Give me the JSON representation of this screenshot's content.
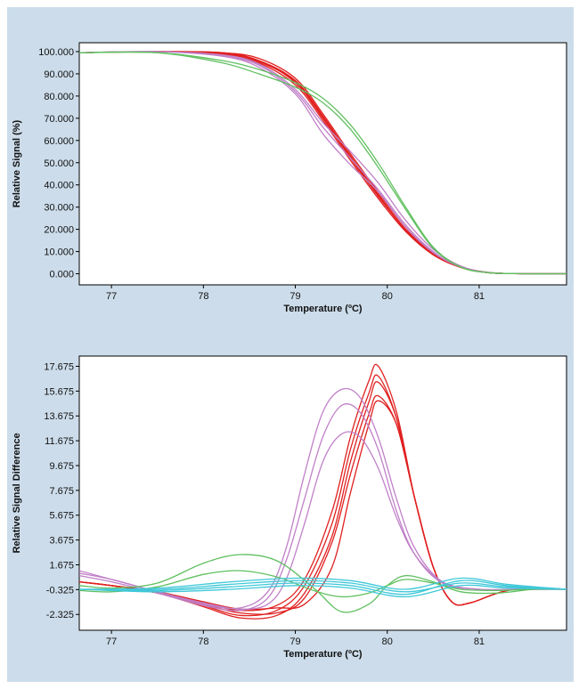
{
  "chart_data": [
    {
      "type": "line",
      "xlabel": "Temperature (ºC)",
      "ylabel": "Relative Signal (%)",
      "xlim": [
        76.65,
        81.95
      ],
      "ylim": [
        -5.0,
        104.0
      ],
      "x_ticks": [
        "77",
        "78",
        "79",
        "80",
        "81"
      ],
      "x_tick_values": [
        77,
        78,
        79,
        80,
        81
      ],
      "y_ticks": [
        "100.000",
        "90.000",
        "80.000",
        "70.000",
        "60.000",
        "50.000",
        "40.000",
        "30.000",
        "20.000",
        "10.000",
        "0.000"
      ],
      "y_tick_values": [
        100,
        90,
        80,
        70,
        60,
        50,
        40,
        30,
        20,
        10,
        0
      ],
      "grid": false,
      "colors": {
        "red": "#e02020",
        "violet": "#c080c8",
        "green": "#60c060"
      },
      "series": [
        {
          "color": "red",
          "x": [
            76.65,
            77.5,
            78.2,
            78.6,
            79.0,
            79.3,
            79.6,
            79.9,
            80.2,
            80.5,
            80.8,
            81.1,
            81.5,
            81.95
          ],
          "values": [
            99.5,
            100,
            99.5,
            96,
            86,
            70,
            52,
            35,
            20,
            9,
            3,
            0.5,
            0,
            0
          ]
        },
        {
          "color": "red",
          "x": [
            76.65,
            77.5,
            78.2,
            78.6,
            79.0,
            79.3,
            79.6,
            79.9,
            80.2,
            80.5,
            80.8,
            81.1,
            81.5,
            81.95
          ],
          "values": [
            99.5,
            100,
            99,
            95,
            85,
            69,
            51,
            34,
            19,
            8.5,
            2.8,
            0.5,
            0,
            0
          ]
        },
        {
          "color": "red",
          "x": [
            76.65,
            77.5,
            78.2,
            78.6,
            79.0,
            79.3,
            79.6,
            79.9,
            80.2,
            80.5,
            80.8,
            81.1,
            81.5,
            81.95
          ],
          "values": [
            99.5,
            100,
            99.5,
            97,
            88,
            72,
            54,
            37,
            21,
            9.5,
            3.2,
            0.6,
            0,
            0
          ]
        },
        {
          "color": "red",
          "x": [
            76.65,
            77.5,
            78.2,
            78.6,
            79.0,
            79.3,
            79.6,
            79.9,
            80.2,
            80.5,
            80.8,
            81.1,
            81.5,
            81.95
          ],
          "values": [
            99.5,
            100,
            99,
            96,
            87,
            71,
            53,
            36,
            20,
            9,
            3,
            0.5,
            0,
            0
          ]
        },
        {
          "color": "red",
          "x": [
            76.65,
            77.5,
            78.2,
            78.6,
            79.0,
            79.3,
            79.6,
            79.9,
            80.2,
            80.5,
            80.8,
            81.1,
            81.5,
            81.95
          ],
          "values": [
            99.5,
            100,
            99.5,
            95.5,
            86.5,
            70.5,
            52.5,
            35.5,
            19.5,
            8.8,
            2.9,
            0.5,
            0,
            0
          ]
        },
        {
          "color": "violet",
          "x": [
            76.65,
            77.5,
            78.2,
            78.6,
            79.0,
            79.3,
            79.6,
            79.9,
            80.2,
            80.5,
            80.8,
            81.1,
            81.5,
            81.95
          ],
          "values": [
            99.5,
            100,
            98,
            94,
            82,
            66,
            52,
            38,
            22,
            10,
            3,
            0.5,
            0,
            0
          ]
        },
        {
          "color": "violet",
          "x": [
            76.65,
            77.5,
            78.2,
            78.6,
            79.0,
            79.3,
            79.6,
            79.9,
            80.2,
            80.5,
            80.8,
            81.1,
            81.5,
            81.95
          ],
          "values": [
            99.5,
            100,
            98,
            93,
            81,
            63,
            49,
            37,
            21,
            9.5,
            3,
            0.5,
            0,
            0
          ]
        },
        {
          "color": "violet",
          "x": [
            76.65,
            77.5,
            78.2,
            78.6,
            79.0,
            79.3,
            79.6,
            79.9,
            80.2,
            80.5,
            80.8,
            81.1,
            81.5,
            81.95
          ],
          "values": [
            99.5,
            100,
            98.5,
            94.5,
            83,
            68,
            55,
            41,
            24,
            11,
            3.5,
            0.6,
            0,
            0
          ]
        },
        {
          "color": "green",
          "x": [
            76.65,
            77.5,
            78.2,
            78.6,
            79.0,
            79.3,
            79.6,
            79.9,
            80.2,
            80.5,
            80.8,
            81.1,
            81.5,
            81.95
          ],
          "values": [
            99.5,
            99.5,
            96,
            92,
            86,
            79,
            67,
            50,
            30,
            12,
            3,
            0.5,
            0,
            0
          ]
        },
        {
          "color": "green",
          "x": [
            76.65,
            77.5,
            78.2,
            78.6,
            79.0,
            79.3,
            79.6,
            79.9,
            80.2,
            80.5,
            80.8,
            81.1,
            81.5,
            81.95
          ],
          "values": [
            99.5,
            99.5,
            95,
            90,
            84,
            77,
            65,
            48,
            29,
            11.5,
            3,
            0.5,
            0,
            0
          ]
        }
      ]
    },
    {
      "type": "line",
      "xlabel": "Temperature (ºC)",
      "ylabel": "Relative Signal Difference",
      "xlim": [
        76.65,
        81.95
      ],
      "ylim": [
        -3.6,
        18.5
      ],
      "x_ticks": [
        "77",
        "78",
        "79",
        "80",
        "81"
      ],
      "x_tick_values": [
        77,
        78,
        79,
        80,
        81
      ],
      "y_ticks": [
        "17.675",
        "15.675",
        "13.675",
        "11.675",
        "9.675",
        "7.675",
        "5.675",
        "3.675",
        "1.675",
        "-0.325",
        "-2.325"
      ],
      "y_tick_values": [
        17.675,
        15.675,
        13.675,
        11.675,
        9.675,
        7.675,
        5.675,
        3.675,
        1.675,
        -0.325,
        -2.325
      ],
      "grid": false,
      "colors": {
        "red": "#e02020",
        "violet": "#c080c8",
        "green": "#60c060",
        "cyan": "#40c8d8"
      },
      "series": [
        {
          "color": "red",
          "x": [
            76.65,
            77.0,
            77.5,
            78.0,
            78.4,
            78.8,
            79.1,
            79.4,
            79.6,
            79.8,
            79.9,
            80.1,
            80.3,
            80.5,
            80.7,
            80.9,
            81.2,
            81.5,
            81.95
          ],
          "values": [
            0.3,
            0,
            -0.5,
            -1.4,
            -2.0,
            -1.6,
            0.5,
            6,
            12,
            16.5,
            17.7,
            14,
            7,
            1.5,
            -1.3,
            -1.4,
            -0.6,
            -0.2,
            -0.3
          ]
        },
        {
          "color": "red",
          "x": [
            76.65,
            77.0,
            77.5,
            78.0,
            78.4,
            78.8,
            79.1,
            79.4,
            79.6,
            79.8,
            79.9,
            80.1,
            80.3,
            80.5,
            80.7,
            80.9,
            81.2,
            81.5,
            81.95
          ],
          "values": [
            0.3,
            0,
            -0.6,
            -1.6,
            -2.4,
            -2.0,
            0,
            5,
            11,
            15.5,
            16.9,
            13.5,
            7,
            1.5,
            -1.3,
            -1.4,
            -0.6,
            -0.2,
            -0.3
          ]
        },
        {
          "color": "red",
          "x": [
            76.65,
            77.0,
            77.5,
            78.0,
            78.4,
            78.8,
            79.1,
            79.4,
            79.6,
            79.8,
            79.9,
            80.1,
            80.3,
            80.5,
            80.7,
            80.9,
            81.2,
            81.5,
            81.95
          ],
          "values": [
            0.3,
            0,
            -0.6,
            -1.7,
            -2.6,
            -2.4,
            -0.6,
            4,
            10,
            14.8,
            16.4,
            13.5,
            7,
            1.5,
            -1.3,
            -1.4,
            -0.6,
            -0.2,
            -0.3
          ]
        },
        {
          "color": "red",
          "x": [
            76.65,
            77.0,
            77.5,
            78.0,
            78.4,
            78.8,
            79.1,
            79.4,
            79.6,
            79.8,
            79.9,
            80.1,
            80.3,
            80.5,
            80.7,
            80.9,
            81.2,
            81.5,
            81.95
          ],
          "values": [
            0.3,
            0,
            -0.5,
            -1.5,
            -2.2,
            -2.2,
            -1.0,
            3.5,
            9,
            13.8,
            15.3,
            13,
            7,
            1.5,
            -1.3,
            -1.4,
            -0.6,
            -0.2,
            -0.3
          ]
        },
        {
          "color": "red",
          "x": [
            76.65,
            77.0,
            77.5,
            78.0,
            78.4,
            78.8,
            79.1,
            79.4,
            79.6,
            79.8,
            79.9,
            80.1,
            80.3,
            80.5,
            80.7,
            80.9,
            81.2,
            81.5,
            81.95
          ],
          "values": [
            0.3,
            0,
            -0.5,
            -1.3,
            -1.9,
            -1.8,
            -1.5,
            1.5,
            7.5,
            13,
            14.9,
            13,
            7,
            1.5,
            -1.3,
            -1.4,
            -0.6,
            -0.2,
            -0.3
          ]
        },
        {
          "color": "violet",
          "x": [
            76.65,
            77.0,
            77.5,
            78.0,
            78.4,
            78.7,
            78.9,
            79.1,
            79.3,
            79.5,
            79.7,
            79.9,
            80.1,
            80.3,
            80.6,
            81.0,
            81.5,
            81.95
          ],
          "values": [
            1.2,
            0.5,
            -0.5,
            -1.5,
            -1.8,
            -0.5,
            3,
            9,
            14,
            15.8,
            15.2,
            12,
            7,
            3,
            0.3,
            -0.3,
            -0.3,
            -0.3
          ]
        },
        {
          "color": "violet",
          "x": [
            76.65,
            77.0,
            77.5,
            78.0,
            78.4,
            78.7,
            78.9,
            79.1,
            79.3,
            79.5,
            79.7,
            79.9,
            80.1,
            80.3,
            80.6,
            81.0,
            81.5,
            81.95
          ],
          "values": [
            1.0,
            0.5,
            -0.5,
            -1.4,
            -1.9,
            -1.5,
            0.5,
            5,
            10,
            12.2,
            12.0,
            9.5,
            5.5,
            2.5,
            0.3,
            -0.3,
            -0.3,
            -0.3
          ]
        },
        {
          "color": "violet",
          "x": [
            76.65,
            77.0,
            77.5,
            78.0,
            78.4,
            78.7,
            78.9,
            79.1,
            79.3,
            79.5,
            79.7,
            79.9,
            80.1,
            80.3,
            80.6,
            81.0,
            81.5,
            81.95
          ],
          "values": [
            0.8,
            0.3,
            -0.6,
            -1.6,
            -2.0,
            -1.0,
            2,
            7,
            12,
            14.5,
            14,
            11,
            6,
            2.5,
            0.2,
            -0.3,
            -0.3,
            -0.3
          ]
        },
        {
          "color": "green",
          "x": [
            76.65,
            77.0,
            77.5,
            78.0,
            78.4,
            78.8,
            79.2,
            79.5,
            79.8,
            80.0,
            80.2,
            80.5,
            80.8,
            81.2,
            81.6,
            81.95
          ],
          "values": [
            0,
            -0.2,
            0.2,
            1.8,
            2.5,
            2.0,
            -0.2,
            -2.1,
            -1.5,
            0,
            0.8,
            0.3,
            -0.5,
            -0.6,
            -0.3,
            -0.3
          ]
        },
        {
          "color": "green",
          "x": [
            76.65,
            77.0,
            77.5,
            78.0,
            78.4,
            78.8,
            79.2,
            79.5,
            79.8,
            80.0,
            80.2,
            80.5,
            80.8,
            81.2,
            81.6,
            81.95
          ],
          "values": [
            -0.4,
            -0.5,
            -0.1,
            0.9,
            1.2,
            0.7,
            -0.4,
            -0.9,
            -0.6,
            0,
            0.5,
            0.2,
            -0.3,
            -0.4,
            -0.3,
            -0.3
          ]
        },
        {
          "color": "cyan",
          "x": [
            76.65,
            77.5,
            78.3,
            79.0,
            79.6,
            80.2,
            80.8,
            81.3,
            81.95
          ],
          "values": [
            -0.3,
            -0.3,
            0.1,
            0.4,
            0.2,
            -0.5,
            0.2,
            -0.1,
            -0.3
          ]
        },
        {
          "color": "cyan",
          "x": [
            76.65,
            77.5,
            78.3,
            79.0,
            79.6,
            80.2,
            80.8,
            81.3,
            81.95
          ],
          "values": [
            -0.3,
            -0.4,
            -0.1,
            0.2,
            0,
            -0.7,
            0.4,
            0,
            -0.3
          ]
        },
        {
          "color": "cyan",
          "x": [
            76.65,
            77.5,
            78.3,
            79.0,
            79.6,
            80.2,
            80.8,
            81.3,
            81.95
          ],
          "values": [
            -0.3,
            -0.2,
            0.3,
            0.6,
            0.4,
            -0.3,
            0.6,
            0.1,
            -0.3
          ]
        },
        {
          "color": "cyan",
          "x": [
            76.65,
            77.5,
            78.3,
            79.0,
            79.6,
            80.2,
            80.8,
            81.3,
            81.95
          ],
          "values": [
            -0.3,
            -0.5,
            -0.3,
            0,
            -0.2,
            -0.9,
            0,
            -0.2,
            -0.3
          ]
        }
      ]
    }
  ]
}
